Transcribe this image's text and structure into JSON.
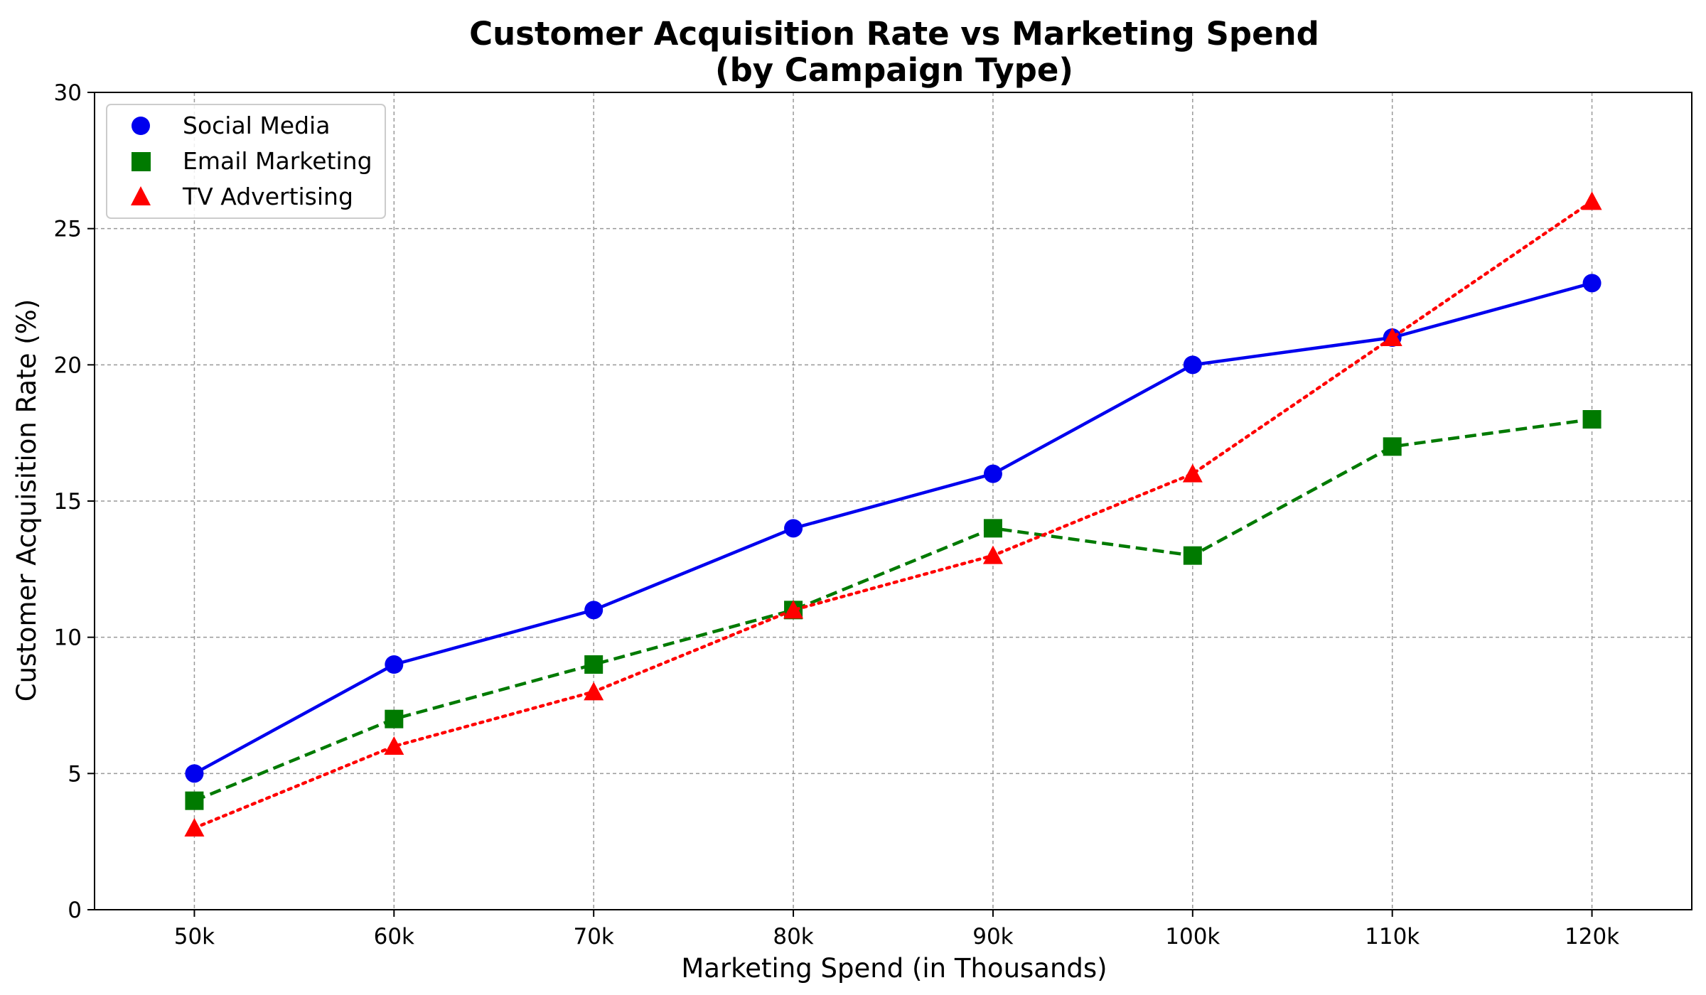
{
  "chart_data": {
    "type": "line",
    "title": "Customer Acquisition Rate vs Marketing Spend",
    "subtitle": "(by Campaign Type)",
    "xlabel": "Marketing Spend (in Thousands)",
    "ylabel": "Customer Acquisition Rate (%)",
    "categories": [
      "50k",
      "60k",
      "70k",
      "80k",
      "90k",
      "100k",
      "110k",
      "120k"
    ],
    "x": [
      50,
      60,
      70,
      80,
      90,
      100,
      110,
      120
    ],
    "xlim": [
      45,
      125
    ],
    "ylim": [
      0,
      30
    ],
    "yticks": [
      0,
      5,
      10,
      15,
      20,
      25,
      30
    ],
    "grid": true,
    "legend_position": "top-left",
    "series": [
      {
        "name": "Social Media",
        "values": [
          5,
          9,
          11,
          14,
          16,
          20,
          21,
          23
        ],
        "color": "#0000ee",
        "line_style": "solid",
        "marker": "circle"
      },
      {
        "name": "Email Marketing",
        "values": [
          4,
          7,
          9,
          11,
          14,
          13,
          17,
          18
        ],
        "color": "#007a00",
        "line_style": "dashed",
        "marker": "square"
      },
      {
        "name": "TV Advertising",
        "values": [
          3,
          6,
          8,
          11,
          13,
          16,
          21,
          26
        ],
        "color": "#ff0000",
        "line_style": "dotted",
        "marker": "triangle"
      }
    ]
  }
}
